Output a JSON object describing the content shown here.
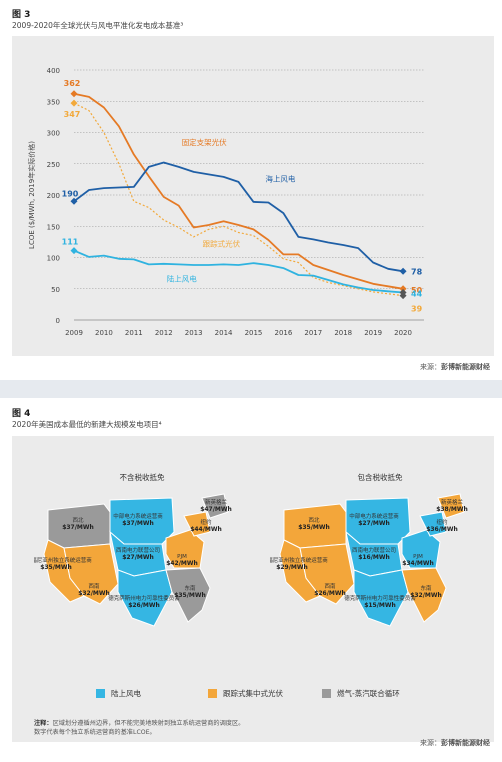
{
  "colors": {
    "offshore": "#1f5fa6",
    "fixed_pv": "#e57a25",
    "tracking_pv": "#f2a93b",
    "onshore": "#2fb3e0",
    "gas": "#8e8e8e",
    "map_blue": "#35b6e3",
    "map_orange": "#f3a63a",
    "map_gray": "#9a9a9a"
  },
  "figure3": {
    "label": "图 3",
    "title": "2009-2020年全球光伏与风电平准化发电成本基准³",
    "source_prefix": "来源：",
    "source_name": "彭博新能源财经"
  },
  "chart_data": {
    "type": "line",
    "x": [
      2009,
      2010,
      2011,
      2012,
      2013,
      2014,
      2015,
      2016,
      2017,
      2018,
      2019,
      2020
    ],
    "x_range": [
      2009,
      2020.7
    ],
    "ylim": [
      0,
      400
    ],
    "yticks": [
      0,
      50,
      100,
      150,
      200,
      250,
      300,
      350,
      400
    ],
    "ylabel": "LCOE ($/MWh, 2019年实际价格)",
    "grid": true,
    "series": [
      {
        "name": "固定支架光伏",
        "key": "fixed_pv",
        "dash": false,
        "points": [
          [
            2009,
            362
          ],
          [
            2009.5,
            357
          ],
          [
            2010,
            340
          ],
          [
            2010.5,
            310
          ],
          [
            2011,
            265
          ],
          [
            2011.5,
            230
          ],
          [
            2012,
            197
          ],
          [
            2012.5,
            183
          ],
          [
            2013,
            148
          ],
          [
            2013.5,
            152
          ],
          [
            2014,
            158
          ],
          [
            2014.5,
            152
          ],
          [
            2015,
            145
          ],
          [
            2015.5,
            128
          ],
          [
            2016,
            105
          ],
          [
            2016.5,
            105
          ],
          [
            2017,
            88
          ],
          [
            2017.5,
            80
          ],
          [
            2018,
            72
          ],
          [
            2018.5,
            65
          ],
          [
            2019,
            58
          ],
          [
            2019.5,
            54
          ],
          [
            2020,
            50
          ]
        ],
        "start_label": "362",
        "end_label": "50"
      },
      {
        "name": "跟踪式光伏",
        "key": "tracking_pv",
        "dash": true,
        "points": [
          [
            2009,
            347
          ],
          [
            2009.5,
            335
          ],
          [
            2010,
            300
          ],
          [
            2010.5,
            250
          ],
          [
            2011,
            190
          ],
          [
            2011.5,
            180
          ],
          [
            2012,
            160
          ],
          [
            2012.5,
            148
          ],
          [
            2013,
            133
          ],
          [
            2013.5,
            145
          ],
          [
            2014,
            150
          ],
          [
            2014.5,
            140
          ],
          [
            2015,
            135
          ],
          [
            2015.5,
            118
          ],
          [
            2016,
            98
          ],
          [
            2016.5,
            92
          ],
          [
            2017,
            68
          ],
          [
            2017.5,
            60
          ],
          [
            2018,
            55
          ],
          [
            2018.5,
            50
          ],
          [
            2019,
            45
          ],
          [
            2019.5,
            42
          ],
          [
            2020,
            39
          ]
        ],
        "start_label": "347",
        "end_label": "39"
      },
      {
        "name": "海上风电",
        "key": "offshore",
        "dash": false,
        "points": [
          [
            2009,
            190
          ],
          [
            2009.5,
            208
          ],
          [
            2010,
            211
          ],
          [
            2010.5,
            212
          ],
          [
            2011,
            213
          ],
          [
            2011.5,
            245
          ],
          [
            2012,
            252
          ],
          [
            2012.5,
            245
          ],
          [
            2013,
            237
          ],
          [
            2013.5,
            233
          ],
          [
            2014,
            229
          ],
          [
            2014.5,
            221
          ],
          [
            2015,
            189
          ],
          [
            2015.5,
            188
          ],
          [
            2016,
            171
          ],
          [
            2016.5,
            133
          ],
          [
            2017,
            129
          ],
          [
            2017.5,
            124
          ],
          [
            2018,
            120
          ],
          [
            2018.5,
            115
          ],
          [
            2019,
            92
          ],
          [
            2019.5,
            82
          ],
          [
            2020,
            78
          ]
        ],
        "start_label": "190",
        "end_label": "78"
      },
      {
        "name": "陆上风电",
        "key": "onshore",
        "dash": false,
        "points": [
          [
            2009,
            111
          ],
          [
            2009.5,
            101
          ],
          [
            2010,
            103
          ],
          [
            2010.5,
            98
          ],
          [
            2011,
            97
          ],
          [
            2011.5,
            89
          ],
          [
            2012,
            90
          ],
          [
            2012.5,
            89
          ],
          [
            2013,
            88
          ],
          [
            2013.5,
            88
          ],
          [
            2014,
            89
          ],
          [
            2014.5,
            88
          ],
          [
            2015,
            91
          ],
          [
            2015.5,
            88
          ],
          [
            2016,
            83
          ],
          [
            2016.5,
            72
          ],
          [
            2017,
            71
          ],
          [
            2017.5,
            64
          ],
          [
            2018,
            57
          ],
          [
            2018.5,
            52
          ],
          [
            2019,
            48
          ],
          [
            2019.5,
            46
          ],
          [
            2020,
            44
          ]
        ],
        "start_label": "111",
        "end_label": "44"
      }
    ]
  },
  "figure4": {
    "label": "图 4",
    "title": "2020年美国成本最低的新建大规模发电项目⁴",
    "left_title": "不含税收抵免",
    "right_title": "包含税收抵免",
    "left_regions": [
      {
        "name": "西北",
        "value": "$37/MWh",
        "type": "gray"
      },
      {
        "name": "加利福尼亚州独立系统运营商",
        "value": "$35/MWh",
        "type": "orange"
      },
      {
        "name": "西南",
        "value": "$32/MWh",
        "type": "orange"
      },
      {
        "name": "中部电力系统运营商",
        "value": "$37/MWh",
        "type": "blue"
      },
      {
        "name": "西南电力联营公司",
        "value": "$27/MWh",
        "type": "blue"
      },
      {
        "name": "德克萨斯州电力可靠性委员会",
        "value": "$26/MWh",
        "type": "blue"
      },
      {
        "name": "PJM",
        "value": "$42/MWh",
        "type": "orange"
      },
      {
        "name": "东南",
        "value": "$35/MWh",
        "type": "gray"
      },
      {
        "name": "纽约",
        "value": "$44/MWh",
        "type": "orange"
      },
      {
        "name": "新英格兰",
        "value": "$47/MWh",
        "type": "gray"
      }
    ],
    "right_regions": [
      {
        "name": "西北",
        "value": "$35/MWh",
        "type": "orange"
      },
      {
        "name": "加利福尼亚州独立系统运营商",
        "value": "$29/MWh",
        "type": "orange"
      },
      {
        "name": "西南",
        "value": "$26/MWh",
        "type": "orange"
      },
      {
        "name": "中部电力系统运营商",
        "value": "$27/MWh",
        "type": "blue"
      },
      {
        "name": "西南电力联营公司",
        "value": "$16/MWh",
        "type": "blue"
      },
      {
        "name": "德克萨斯州电力可靠性委员会",
        "value": "$15/MWh",
        "type": "blue"
      },
      {
        "name": "PJM",
        "value": "$34/MWh",
        "type": "blue"
      },
      {
        "name": "东南",
        "value": "$32/MWh",
        "type": "orange"
      },
      {
        "name": "纽约",
        "value": "$36/MWh",
        "type": "blue"
      },
      {
        "name": "新英格兰",
        "value": "$38/MWh",
        "type": "orange"
      }
    ],
    "legend": [
      {
        "label": "陆上风电",
        "color": "#35b6e3"
      },
      {
        "label": "跟踪式集中式光伏",
        "color": "#f3a63a"
      },
      {
        "label": "燃气-蒸汽联合循环",
        "color": "#9a9a9a"
      }
    ],
    "note_label": "注释：",
    "note_line1": "区域划分遵循州边界，但不能完美地映射到独立系统运营商的调度区。",
    "note_line2": "数字代表每个独立系统运营商的基准LCOE。",
    "source_prefix": "来源：",
    "source_name": "彭博新能源财经"
  }
}
